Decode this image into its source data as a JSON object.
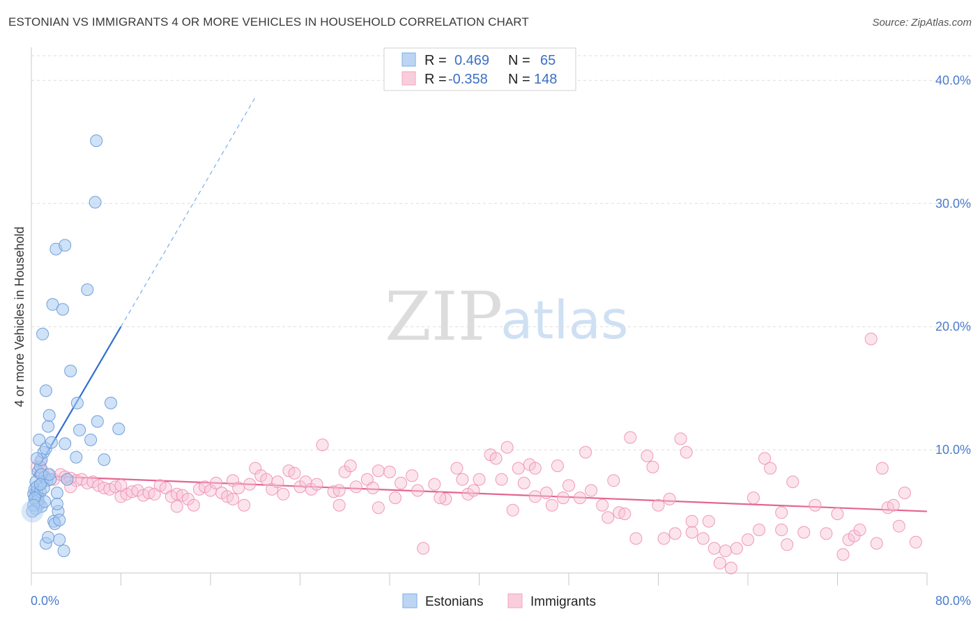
{
  "title": "ESTONIAN VS IMMIGRANTS 4 OR MORE VEHICLES IN HOUSEHOLD CORRELATION CHART",
  "source": "Source: ZipAtlas.com",
  "watermark": {
    "zip": "ZIP",
    "atlas": "atlas"
  },
  "colors": {
    "estonians": "#7aaee8",
    "immigrants": "#f3a6bf",
    "estonians_line": "#2f6fd0",
    "immigrants_line": "#e36591",
    "axis_text": "#4a7ccc"
  },
  "legend": {
    "r_label": "R =",
    "n_label": "N =",
    "rows": [
      {
        "r": "0.469",
        "n": "65"
      },
      {
        "r": "-0.358",
        "n": "148"
      }
    ]
  },
  "chart_data": {
    "type": "scatter",
    "ylabel": "4 or more Vehicles in Household",
    "xlim": [
      0,
      80
    ],
    "ylim": [
      0,
      42
    ],
    "x_tick_labels": [
      "0.0%",
      "80.0%"
    ],
    "y_ticks": [
      10,
      20,
      30,
      40
    ],
    "y_tick_labels": [
      "10.0%",
      "20.0%",
      "30.0%",
      "40.0%"
    ],
    "grid": "horizontal dashed",
    "legend_position": "top-center",
    "series": [
      {
        "name": "Estonians",
        "r": 0.469,
        "n": 65,
        "trend": {
          "x0": 0.2,
          "y0": 7.9,
          "x1": 8.0,
          "y1": 20.0,
          "dash_to_x": 20.0
        },
        "points": [
          [
            0.2,
            6.4
          ],
          [
            0.3,
            6.8
          ],
          [
            0.3,
            6.0
          ],
          [
            0.4,
            7.4
          ],
          [
            0.4,
            5.8
          ],
          [
            0.5,
            6.6
          ],
          [
            0.5,
            7.0
          ],
          [
            0.6,
            8.2
          ],
          [
            0.6,
            6.2
          ],
          [
            0.7,
            5.6
          ],
          [
            0.7,
            10.8
          ],
          [
            0.8,
            8.6
          ],
          [
            0.8,
            6.6
          ],
          [
            0.9,
            9.2
          ],
          [
            0.9,
            5.4
          ],
          [
            1.0,
            19.4
          ],
          [
            1.0,
            7.4
          ],
          [
            1.1,
            9.8
          ],
          [
            1.2,
            7.8
          ],
          [
            1.3,
            14.8
          ],
          [
            1.3,
            10.1
          ],
          [
            1.4,
            7.5
          ],
          [
            1.5,
            11.9
          ],
          [
            1.6,
            12.8
          ],
          [
            1.7,
            7.6
          ],
          [
            1.8,
            10.6
          ],
          [
            1.9,
            21.8
          ],
          [
            2.0,
            4.2
          ],
          [
            2.1,
            4.0
          ],
          [
            2.2,
            26.3
          ],
          [
            2.3,
            6.5
          ],
          [
            2.4,
            5.0
          ],
          [
            2.5,
            4.3
          ],
          [
            2.5,
            2.7
          ],
          [
            2.8,
            21.4
          ],
          [
            3.0,
            26.6
          ],
          [
            3.2,
            7.6
          ],
          [
            3.5,
            16.4
          ],
          [
            4.0,
            9.4
          ],
          [
            4.1,
            13.8
          ],
          [
            4.3,
            11.6
          ],
          [
            5.0,
            23.0
          ],
          [
            5.3,
            10.8
          ],
          [
            5.7,
            30.1
          ],
          [
            5.8,
            35.1
          ],
          [
            5.9,
            12.3
          ],
          [
            6.5,
            9.2
          ],
          [
            7.1,
            13.8
          ],
          [
            7.8,
            11.7
          ],
          [
            1.3,
            2.4
          ],
          [
            1.5,
            2.9
          ],
          [
            2.9,
            1.8
          ],
          [
            0.6,
            5.9
          ],
          [
            0.9,
            8.0
          ],
          [
            1.1,
            6.9
          ],
          [
            2.3,
            5.6
          ],
          [
            3.0,
            10.5
          ],
          [
            0.4,
            5.2
          ],
          [
            0.5,
            9.3
          ],
          [
            1.6,
            8.0
          ],
          [
            0.8,
            7.2
          ],
          [
            1.2,
            5.8
          ],
          [
            0.3,
            6.1
          ],
          [
            0.2,
            5.5
          ],
          [
            0.1,
            5.0
          ]
        ]
      },
      {
        "name": "Immigrants",
        "r": -0.358,
        "n": 148,
        "trend": {
          "x0": 0.2,
          "y0": 7.9,
          "x1": 80.0,
          "y1": 5.0
        },
        "points": [
          [
            0.5,
            8.6
          ],
          [
            0.8,
            9.0
          ],
          [
            1.0,
            8.3
          ],
          [
            1.5,
            8.0
          ],
          [
            2.0,
            7.6
          ],
          [
            2.6,
            8.0
          ],
          [
            3.0,
            7.8
          ],
          [
            3.5,
            7.7
          ],
          [
            4.0,
            7.5
          ],
          [
            4.5,
            7.6
          ],
          [
            5.0,
            7.3
          ],
          [
            5.5,
            7.4
          ],
          [
            6.0,
            7.1
          ],
          [
            6.5,
            6.9
          ],
          [
            7.0,
            6.8
          ],
          [
            7.5,
            7.0
          ],
          [
            8.0,
            6.2
          ],
          [
            8.5,
            6.4
          ],
          [
            9.0,
            6.6
          ],
          [
            9.5,
            6.7
          ],
          [
            10.0,
            6.3
          ],
          [
            10.5,
            6.5
          ],
          [
            11.0,
            6.4
          ],
          [
            11.5,
            7.1
          ],
          [
            12.0,
            6.9
          ],
          [
            12.5,
            6.2
          ],
          [
            13.0,
            6.4
          ],
          [
            13.5,
            6.3
          ],
          [
            14.0,
            6.0
          ],
          [
            14.5,
            5.5
          ],
          [
            15.0,
            6.8
          ],
          [
            15.5,
            7.0
          ],
          [
            16.0,
            6.7
          ],
          [
            16.5,
            7.3
          ],
          [
            17.0,
            6.5
          ],
          [
            17.5,
            6.2
          ],
          [
            18.0,
            7.5
          ],
          [
            18.5,
            6.9
          ],
          [
            19.0,
            5.5
          ],
          [
            19.5,
            7.2
          ],
          [
            20.0,
            8.5
          ],
          [
            20.5,
            7.9
          ],
          [
            21.0,
            7.6
          ],
          [
            21.5,
            6.8
          ],
          [
            22.0,
            7.4
          ],
          [
            22.5,
            6.4
          ],
          [
            23.0,
            8.3
          ],
          [
            23.5,
            8.1
          ],
          [
            24.0,
            7.0
          ],
          [
            24.5,
            7.4
          ],
          [
            25.0,
            6.8
          ],
          [
            25.5,
            7.2
          ],
          [
            26.0,
            10.4
          ],
          [
            27.0,
            6.6
          ],
          [
            27.5,
            5.5
          ],
          [
            28.0,
            8.2
          ],
          [
            28.5,
            8.7
          ],
          [
            29.0,
            7.0
          ],
          [
            30.0,
            7.6
          ],
          [
            30.5,
            6.9
          ],
          [
            31.0,
            8.3
          ],
          [
            32.0,
            8.2
          ],
          [
            32.5,
            6.1
          ],
          [
            33.0,
            7.3
          ],
          [
            34.0,
            7.9
          ],
          [
            34.5,
            6.7
          ],
          [
            35.0,
            2.0
          ],
          [
            36.0,
            7.2
          ],
          [
            37.0,
            6.0
          ],
          [
            38.0,
            8.5
          ],
          [
            38.5,
            7.6
          ],
          [
            39.0,
            6.4
          ],
          [
            39.5,
            6.7
          ],
          [
            40.0,
            7.6
          ],
          [
            41.0,
            9.6
          ],
          [
            41.5,
            9.3
          ],
          [
            42.0,
            7.6
          ],
          [
            42.5,
            10.2
          ],
          [
            43.0,
            5.1
          ],
          [
            43.5,
            8.5
          ],
          [
            44.0,
            7.3
          ],
          [
            44.5,
            8.8
          ],
          [
            45.0,
            8.5
          ],
          [
            46.0,
            6.5
          ],
          [
            46.5,
            5.5
          ],
          [
            47.0,
            8.7
          ],
          [
            47.5,
            6.1
          ],
          [
            48.0,
            7.1
          ],
          [
            49.0,
            6.1
          ],
          [
            49.5,
            9.8
          ],
          [
            50.0,
            6.7
          ],
          [
            51.0,
            5.5
          ],
          [
            51.5,
            4.5
          ],
          [
            52.0,
            7.5
          ],
          [
            52.5,
            4.9
          ],
          [
            53.0,
            4.8
          ],
          [
            53.5,
            11.0
          ],
          [
            54.0,
            2.8
          ],
          [
            55.0,
            9.5
          ],
          [
            55.5,
            8.6
          ],
          [
            56.0,
            5.5
          ],
          [
            56.5,
            2.8
          ],
          [
            57.0,
            6.0
          ],
          [
            57.5,
            3.2
          ],
          [
            58.0,
            10.9
          ],
          [
            58.5,
            9.8
          ],
          [
            59.0,
            3.3
          ],
          [
            60.0,
            2.8
          ],
          [
            60.5,
            4.2
          ],
          [
            61.0,
            2.0
          ],
          [
            61.5,
            0.8
          ],
          [
            62.0,
            1.8
          ],
          [
            62.5,
            0.4
          ],
          [
            63.0,
            2.0
          ],
          [
            64.0,
            2.7
          ],
          [
            64.5,
            6.1
          ],
          [
            65.0,
            3.5
          ],
          [
            65.5,
            9.3
          ],
          [
            66.0,
            8.5
          ],
          [
            67.0,
            3.5
          ],
          [
            67.5,
            2.3
          ],
          [
            68.0,
            7.4
          ],
          [
            69.0,
            3.3
          ],
          [
            70.0,
            5.5
          ],
          [
            71.0,
            3.2
          ],
          [
            72.0,
            4.8
          ],
          [
            72.5,
            1.5
          ],
          [
            73.0,
            2.7
          ],
          [
            73.5,
            3.0
          ],
          [
            74.0,
            3.5
          ],
          [
            75.0,
            19.0
          ],
          [
            75.5,
            2.4
          ],
          [
            76.0,
            8.5
          ],
          [
            76.5,
            5.3
          ],
          [
            77.0,
            5.5
          ],
          [
            77.5,
            3.8
          ],
          [
            78.0,
            6.5
          ],
          [
            79.0,
            2.5
          ],
          [
            67.0,
            4.9
          ],
          [
            59.0,
            4.2
          ],
          [
            45.0,
            6.2
          ],
          [
            36.5,
            6.1
          ],
          [
            31.0,
            5.3
          ],
          [
            27.5,
            6.7
          ],
          [
            18.0,
            6.0
          ],
          [
            13.0,
            5.4
          ],
          [
            8.0,
            7.1
          ],
          [
            3.5,
            7.0
          ]
        ]
      }
    ]
  }
}
